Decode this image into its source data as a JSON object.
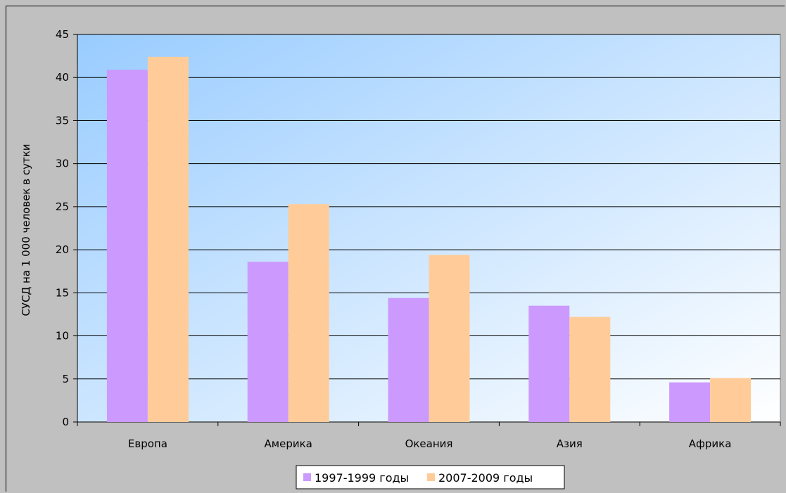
{
  "chart_data": {
    "type": "bar",
    "categories": [
      "Европа",
      "Америка",
      "Океания",
      "Азия",
      "Африка"
    ],
    "series": [
      {
        "name": "1997-1999 годы",
        "values": [
          40.9,
          18.6,
          14.4,
          13.5,
          4.6
        ],
        "color": "#cc99ff"
      },
      {
        "name": "2007-2009 годы",
        "values": [
          42.4,
          25.3,
          19.4,
          12.2,
          5.1
        ],
        "color": "#ffcc99"
      }
    ],
    "xlabel": "",
    "ylabel": "СУСД на 1 000 человек в сутки",
    "ylim": [
      0,
      45
    ],
    "yticks": [
      0,
      5,
      10,
      15,
      20,
      25,
      30,
      35,
      40,
      45
    ],
    "grid": true,
    "legend_position": "bottom-center",
    "plot_gradient": [
      "#99ccff",
      "#ffffff"
    ]
  }
}
